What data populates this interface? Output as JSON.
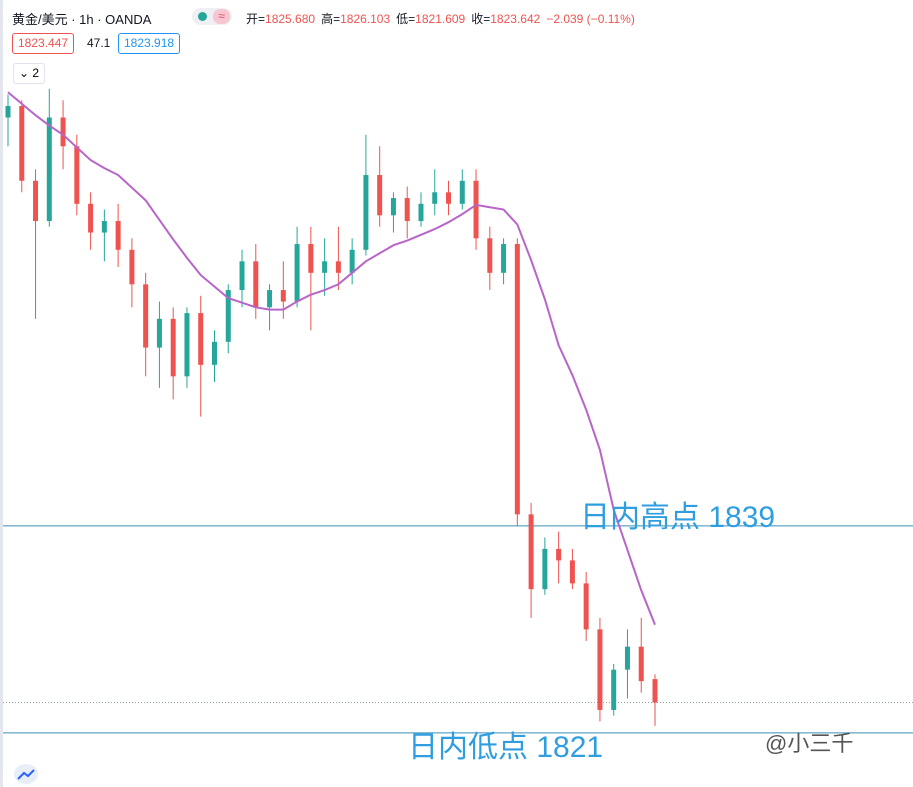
{
  "header": {
    "symbol": "黄金/美元 · 1h · OANDA",
    "ohlc": [
      {
        "label": "开=",
        "value": "1825.680"
      },
      {
        "label": "高=",
        "value": "1826.103"
      },
      {
        "label": "低=",
        "value": "1821.609"
      },
      {
        "label": "收=",
        "value": "1823.642"
      }
    ],
    "change": "−2.039 (−0.11%)",
    "bid": "1823.447",
    "spread": "47.1",
    "ask": "1823.918",
    "indicator_count": "2"
  },
  "watermark": "@小三千",
  "chart_data": {
    "type": "candlestick",
    "up_color": "#26a69a",
    "down_color": "#ef5350",
    "ylim": [
      1816.3,
      1879.5
    ],
    "open": [
      1874.5,
      1875.5,
      1869,
      1865.5,
      1874.5,
      1872,
      1867,
      1864.5,
      1865.5,
      1863,
      1860,
      1854.5,
      1857,
      1852,
      1857.5,
      1853,
      1855,
      1859.5,
      1862,
      1858,
      1859.5,
      1858.5,
      1863.5,
      1861,
      1862,
      1861,
      1863,
      1869.5,
      1866,
      1867.5,
      1865.5,
      1867,
      1868,
      1867,
      1869,
      1864,
      1861,
      1863.5,
      1840,
      1833.5,
      1837,
      1836,
      1834,
      1830,
      1823,
      1826.5,
      1828.5,
      1825.68
    ],
    "high": [
      1876.5,
      1876,
      1870,
      1877,
      1876,
      1873,
      1868,
      1866.5,
      1867,
      1864,
      1861,
      1858.5,
      1858,
      1858,
      1859,
      1856,
      1860,
      1863,
      1863.5,
      1860,
      1862,
      1865,
      1865,
      1864,
      1865,
      1864,
      1873,
      1872,
      1868,
      1868.5,
      1868,
      1870,
      1869,
      1870,
      1870,
      1865,
      1864,
      1864,
      1841,
      1838,
      1838.5,
      1837,
      1835,
      1831,
      1827,
      1830,
      1831,
      1826.103
    ],
    "low": [
      1872,
      1868,
      1857,
      1865,
      1870,
      1866,
      1863,
      1862,
      1861.5,
      1858,
      1852,
      1851,
      1850,
      1851,
      1848.5,
      1851.5,
      1854,
      1858,
      1857,
      1856,
      1857,
      1858,
      1856,
      1859,
      1859.5,
      1860,
      1862.5,
      1865,
      1864.5,
      1864,
      1865,
      1866,
      1866,
      1866.5,
      1863,
      1859.5,
      1860,
      1839,
      1831,
      1833,
      1834,
      1833.5,
      1829,
      1822,
      1822.5,
      1824,
      1824.5,
      1821.609
    ],
    "close": [
      1875.5,
      1869,
      1865.5,
      1874.5,
      1872,
      1867,
      1864.5,
      1865.5,
      1863,
      1860,
      1854.5,
      1857,
      1852,
      1857.5,
      1853,
      1855,
      1859.5,
      1862,
      1858,
      1859.5,
      1858.5,
      1863.5,
      1861,
      1862,
      1861,
      1863,
      1869.5,
      1866,
      1867.5,
      1865.5,
      1867,
      1868,
      1867,
      1869,
      1864,
      1861,
      1863.5,
      1840,
      1833.5,
      1837,
      1836,
      1834,
      1830,
      1823,
      1826.5,
      1828.5,
      1825.5,
      1823.642
    ],
    "series": [
      {
        "color": "#b964c8",
        "values": [
          1876.7,
          1875.7,
          1874.7,
          1873.8,
          1873,
          1871.9,
          1870.8,
          1870.1,
          1869.5,
          1868.4,
          1867.3,
          1865.6,
          1863.9,
          1862.3,
          1860.8,
          1859.8,
          1858.8,
          1858.4,
          1858,
          1857.8,
          1857.8,
          1858.5,
          1859.1,
          1859.5,
          1860,
          1861,
          1862,
          1862.7,
          1863.4,
          1863.8,
          1864.3,
          1864.8,
          1865.4,
          1866.1,
          1866.9,
          1866.7,
          1866.5,
          1865.2,
          1862.1,
          1858.7,
          1854.7,
          1852.1,
          1849.1,
          1845.6,
          1840.4,
          1836.9,
          1833.4,
          1830.4
        ]
      }
    ],
    "hlines": [
      {
        "value": 1839,
        "label": "日内高点 1839",
        "color": "#2f9ee0"
      },
      {
        "value": 1821,
        "label": "日内低点 1821",
        "color": "#2f9ee0"
      }
    ]
  }
}
